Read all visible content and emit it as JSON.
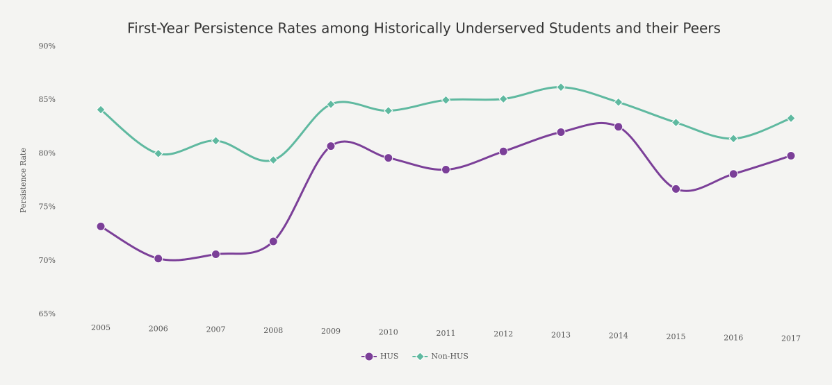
{
  "chart_data": {
    "type": "line",
    "title": "First-Year Persistence Rates among Historically Underserved Students and their Peers",
    "y_label": "Persistence Rate",
    "categories": [
      "2005",
      "2006",
      "2007",
      "2008",
      "2009",
      "2010",
      "2011",
      "2012",
      "2013",
      "2014",
      "2015",
      "2016",
      "2017"
    ],
    "series": [
      {
        "name": "HUS",
        "color": "#7b3f98",
        "marker": "circle",
        "values": [
          73.2,
          70.2,
          70.6,
          71.8,
          80.7,
          79.6,
          78.5,
          80.2,
          82.0,
          82.5,
          76.7,
          78.1,
          79.8
        ]
      },
      {
        "name": "Non-HUS",
        "color": "#5fb9a0",
        "marker": "diamond",
        "values": [
          84.1,
          80.0,
          81.2,
          79.4,
          84.6,
          84.0,
          85.0,
          85.1,
          86.2,
          84.8,
          82.9,
          81.4,
          83.3
        ]
      }
    ],
    "ylim": [
      65,
      90
    ],
    "yticks": [
      {
        "value": 65,
        "label": "65%"
      },
      {
        "value": 70,
        "label": "70%"
      },
      {
        "value": 75,
        "label": "75%"
      },
      {
        "value": 80,
        "label": "80%"
      },
      {
        "value": 85,
        "label": "85%"
      },
      {
        "value": 90,
        "label": "90%"
      }
    ],
    "grid": false,
    "legend": "bottom"
  }
}
